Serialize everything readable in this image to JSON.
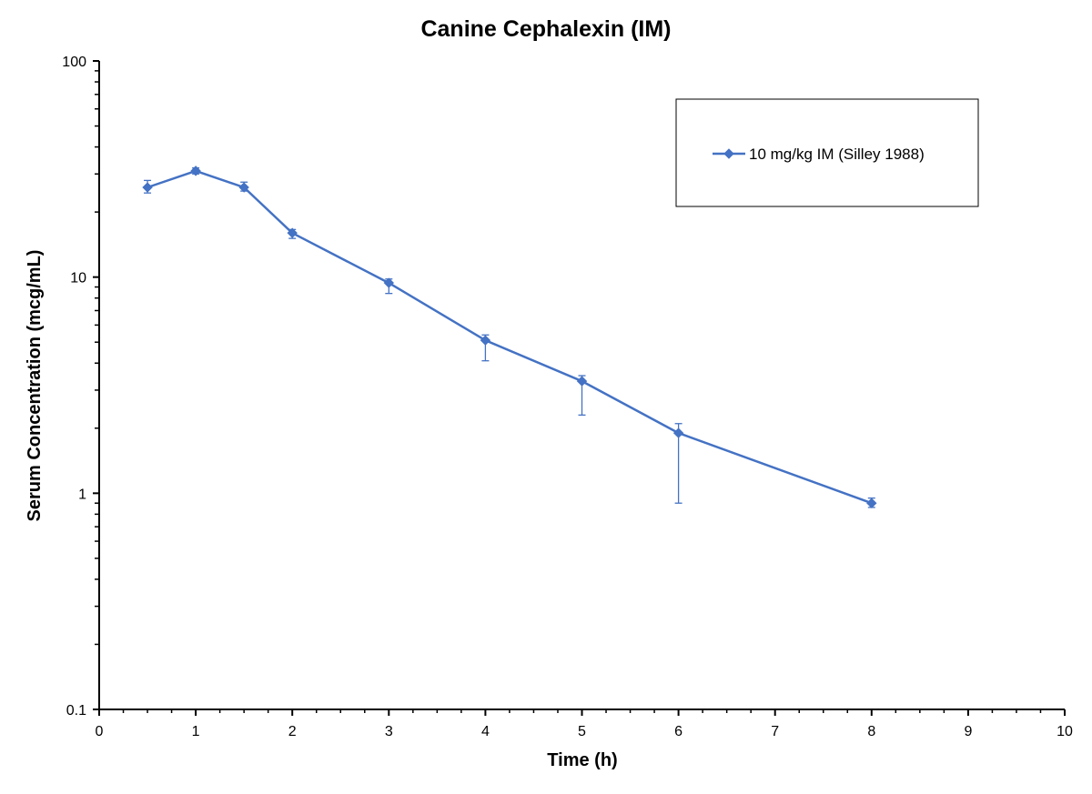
{
  "chart_data": {
    "type": "line",
    "title": "Canine Cephalexin (IM)",
    "xlabel": "Time (h)",
    "ylabel": "Serum Concentration (mcg/mL)",
    "xlim": [
      0,
      10
    ],
    "ylim": [
      0.1,
      100
    ],
    "yscale": "log",
    "grid": false,
    "legend_position": "top-right",
    "x_tick_labels": [
      "0",
      "1",
      "2",
      "3",
      "4",
      "5",
      "6",
      "7",
      "8",
      "9",
      "10"
    ],
    "y_tick_labels": [
      "0.1",
      "1",
      "10",
      "100"
    ],
    "series": [
      {
        "name": "10 mg/kg IM (Silley 1988)",
        "color": "#4472C4",
        "marker": "diamond",
        "x": [
          0.5,
          1,
          1.5,
          2,
          3,
          4,
          5,
          6,
          8
        ],
        "y": [
          26,
          31,
          26,
          16,
          9.4,
          5.1,
          3.3,
          1.9,
          0.9
        ],
        "error_low": [
          24.5,
          30,
          25,
          15.1,
          8.4,
          4.1,
          2.3,
          0.9,
          0.86
        ],
        "error_high": [
          28,
          32,
          27.5,
          16.6,
          9.8,
          5.4,
          3.5,
          2.1,
          0.95
        ]
      }
    ]
  }
}
